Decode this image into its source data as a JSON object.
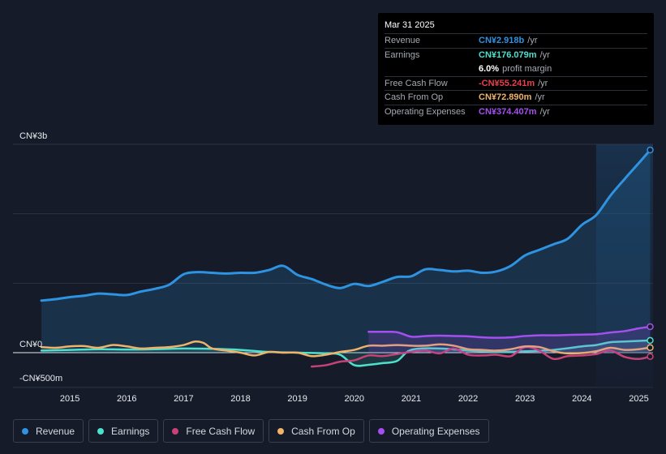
{
  "tooltip": {
    "date": "Mar 31 2025",
    "rows": [
      {
        "label": "Revenue",
        "value": "CN¥2.918b",
        "unit": "/yr",
        "color": "#2e93e0"
      },
      {
        "label": "Earnings",
        "value": "CN¥176.079m",
        "unit": "/yr",
        "color": "#4ee0cc"
      },
      {
        "label": "",
        "value": "6.0%",
        "unit": "profit margin",
        "color": "#ffffff"
      },
      {
        "label": "Free Cash Flow",
        "value": "-CN¥55.241m",
        "unit": "/yr",
        "color": "#e8414d"
      },
      {
        "label": "Cash From Op",
        "value": "CN¥72.890m",
        "unit": "/yr",
        "color": "#efb36a"
      },
      {
        "label": "Operating Expenses",
        "value": "CN¥374.407m",
        "unit": "/yr",
        "color": "#a64ff0"
      }
    ]
  },
  "chart_data": {
    "type": "line",
    "ylabel_top": "CN¥3b",
    "ylabel_zero": "CN¥0",
    "ylabel_bottom": "-CN¥500m",
    "ylim": [
      -500,
      3000
    ],
    "x_ticks": [
      "2015",
      "2016",
      "2017",
      "2018",
      "2019",
      "2020",
      "2021",
      "2022",
      "2023",
      "2024",
      "2025"
    ],
    "x_range": [
      2014.0,
      2025.25
    ],
    "highlight_start": 2024.25,
    "series": [
      {
        "name": "Revenue",
        "color": "#2e93e0",
        "fill": true,
        "points": [
          [
            2014.5,
            750
          ],
          [
            2014.75,
            770
          ],
          [
            2015.0,
            800
          ],
          [
            2015.25,
            820
          ],
          [
            2015.5,
            850
          ],
          [
            2015.75,
            840
          ],
          [
            2016.0,
            830
          ],
          [
            2016.25,
            880
          ],
          [
            2016.5,
            920
          ],
          [
            2016.75,
            980
          ],
          [
            2017.0,
            1130
          ],
          [
            2017.25,
            1160
          ],
          [
            2017.5,
            1150
          ],
          [
            2017.75,
            1140
          ],
          [
            2018.0,
            1150
          ],
          [
            2018.25,
            1150
          ],
          [
            2018.5,
            1190
          ],
          [
            2018.75,
            1250
          ],
          [
            2019.0,
            1120
          ],
          [
            2019.25,
            1060
          ],
          [
            2019.5,
            980
          ],
          [
            2019.75,
            930
          ],
          [
            2020.0,
            990
          ],
          [
            2020.25,
            960
          ],
          [
            2020.5,
            1020
          ],
          [
            2020.75,
            1090
          ],
          [
            2021.0,
            1100
          ],
          [
            2021.25,
            1200
          ],
          [
            2021.5,
            1190
          ],
          [
            2021.75,
            1170
          ],
          [
            2022.0,
            1180
          ],
          [
            2022.25,
            1150
          ],
          [
            2022.5,
            1170
          ],
          [
            2022.75,
            1250
          ],
          [
            2023.0,
            1400
          ],
          [
            2023.25,
            1480
          ],
          [
            2023.5,
            1560
          ],
          [
            2023.75,
            1640
          ],
          [
            2024.0,
            1840
          ],
          [
            2024.25,
            1980
          ],
          [
            2024.5,
            2260
          ],
          [
            2024.75,
            2500
          ],
          [
            2025.0,
            2730
          ],
          [
            2025.2,
            2918
          ]
        ]
      },
      {
        "name": "Earnings",
        "color": "#4ee0cc",
        "fill": true,
        "points": [
          [
            2014.5,
            30
          ],
          [
            2015.0,
            40
          ],
          [
            2015.5,
            50
          ],
          [
            2016.0,
            45
          ],
          [
            2016.5,
            50
          ],
          [
            2017.0,
            60
          ],
          [
            2017.5,
            55
          ],
          [
            2018.0,
            40
          ],
          [
            2018.5,
            10
          ],
          [
            2019.0,
            0
          ],
          [
            2019.5,
            -10
          ],
          [
            2019.75,
            -30
          ],
          [
            2020.0,
            -180
          ],
          [
            2020.25,
            -175
          ],
          [
            2020.5,
            -150
          ],
          [
            2020.75,
            -120
          ],
          [
            2021.0,
            40
          ],
          [
            2021.5,
            60
          ],
          [
            2022.0,
            30
          ],
          [
            2022.5,
            10
          ],
          [
            2023.0,
            20
          ],
          [
            2023.5,
            40
          ],
          [
            2024.0,
            90
          ],
          [
            2024.25,
            110
          ],
          [
            2024.5,
            150
          ],
          [
            2024.75,
            160
          ],
          [
            2025.2,
            176
          ]
        ]
      },
      {
        "name": "Free Cash Flow",
        "color": "#c8427a",
        "fill": false,
        "points": [
          [
            2019.25,
            -200
          ],
          [
            2019.5,
            -180
          ],
          [
            2019.75,
            -130
          ],
          [
            2020.0,
            -110
          ],
          [
            2020.25,
            -40
          ],
          [
            2020.5,
            -50
          ],
          [
            2020.75,
            -20
          ],
          [
            2021.0,
            10
          ],
          [
            2021.25,
            30
          ],
          [
            2021.5,
            -10
          ],
          [
            2021.75,
            60
          ],
          [
            2022.0,
            -30
          ],
          [
            2022.25,
            -40
          ],
          [
            2022.5,
            -30
          ],
          [
            2022.75,
            -50
          ],
          [
            2023.0,
            80
          ],
          [
            2023.25,
            30
          ],
          [
            2023.5,
            -90
          ],
          [
            2023.75,
            -50
          ],
          [
            2024.0,
            -40
          ],
          [
            2024.25,
            -20
          ],
          [
            2024.5,
            30
          ],
          [
            2024.75,
            -60
          ],
          [
            2025.0,
            -90
          ],
          [
            2025.2,
            -55
          ]
        ]
      },
      {
        "name": "Cash From Op",
        "color": "#efb36a",
        "fill": false,
        "points": [
          [
            2014.5,
            80
          ],
          [
            2014.75,
            70
          ],
          [
            2015.0,
            90
          ],
          [
            2015.25,
            95
          ],
          [
            2015.5,
            70
          ],
          [
            2015.75,
            110
          ],
          [
            2016.0,
            90
          ],
          [
            2016.25,
            60
          ],
          [
            2016.5,
            70
          ],
          [
            2016.75,
            80
          ],
          [
            2017.0,
            110
          ],
          [
            2017.2,
            160
          ],
          [
            2017.35,
            140
          ],
          [
            2017.5,
            60
          ],
          [
            2017.75,
            30
          ],
          [
            2018.0,
            0
          ],
          [
            2018.25,
            -40
          ],
          [
            2018.5,
            10
          ],
          [
            2018.75,
            0
          ],
          [
            2019.0,
            0
          ],
          [
            2019.25,
            -50
          ],
          [
            2019.5,
            -30
          ],
          [
            2019.75,
            10
          ],
          [
            2020.0,
            40
          ],
          [
            2020.25,
            100
          ],
          [
            2020.5,
            100
          ],
          [
            2020.75,
            110
          ],
          [
            2021.0,
            100
          ],
          [
            2021.25,
            100
          ],
          [
            2021.5,
            120
          ],
          [
            2021.75,
            100
          ],
          [
            2022.0,
            50
          ],
          [
            2022.25,
            40
          ],
          [
            2022.5,
            30
          ],
          [
            2022.75,
            50
          ],
          [
            2023.0,
            90
          ],
          [
            2023.25,
            80
          ],
          [
            2023.5,
            20
          ],
          [
            2023.75,
            -10
          ],
          [
            2024.0,
            -5
          ],
          [
            2024.25,
            20
          ],
          [
            2024.5,
            70
          ],
          [
            2024.75,
            40
          ],
          [
            2025.0,
            50
          ],
          [
            2025.2,
            73
          ]
        ]
      },
      {
        "name": "Operating Expenses",
        "color": "#a64ff0",
        "fill": true,
        "points": [
          [
            2020.25,
            300
          ],
          [
            2020.5,
            300
          ],
          [
            2020.75,
            295
          ],
          [
            2021.0,
            230
          ],
          [
            2021.25,
            240
          ],
          [
            2021.5,
            245
          ],
          [
            2021.75,
            240
          ],
          [
            2022.0,
            235
          ],
          [
            2022.25,
            220
          ],
          [
            2022.5,
            215
          ],
          [
            2022.75,
            220
          ],
          [
            2023.0,
            240
          ],
          [
            2023.25,
            250
          ],
          [
            2023.5,
            250
          ],
          [
            2023.75,
            255
          ],
          [
            2024.0,
            260
          ],
          [
            2024.25,
            265
          ],
          [
            2024.5,
            290
          ],
          [
            2024.75,
            310
          ],
          [
            2025.0,
            350
          ],
          [
            2025.2,
            374
          ]
        ]
      }
    ]
  },
  "legend": [
    {
      "label": "Revenue",
      "color": "#2e93e0"
    },
    {
      "label": "Earnings",
      "color": "#4ee0cc"
    },
    {
      "label": "Free Cash Flow",
      "color": "#c8427a"
    },
    {
      "label": "Cash From Op",
      "color": "#efb36a"
    },
    {
      "label": "Operating Expenses",
      "color": "#a64ff0"
    }
  ]
}
